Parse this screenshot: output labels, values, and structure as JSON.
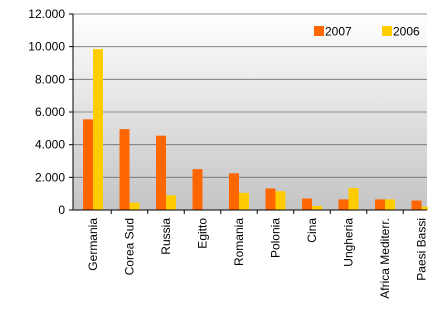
{
  "chart_data": {
    "type": "bar",
    "title": "",
    "xlabel": "",
    "ylabel": "",
    "ylim": [
      0,
      12000
    ],
    "yticks": [
      0,
      2000,
      4000,
      6000,
      8000,
      10000,
      12000
    ],
    "ytick_labels": [
      "0",
      "2.000",
      "4.000",
      "6.000",
      "8.000",
      "10.000",
      "12.000"
    ],
    "grid": true,
    "legend_position": "top-right",
    "categories": [
      "Germania",
      "Corea Sud",
      "Russia",
      "Egitto",
      "Romania",
      "Polonia",
      "Cina",
      "Ungheria",
      "Africa Mediterr.",
      "Paesi Bassi"
    ],
    "series": [
      {
        "name": "2007",
        "color": "#ff6600",
        "values": [
          5550,
          4950,
          4550,
          2500,
          2250,
          1320,
          700,
          650,
          650,
          580
        ]
      },
      {
        "name": "2006",
        "color": "#ffcc00",
        "values": [
          9850,
          450,
          900,
          0,
          1050,
          1150,
          250,
          1350,
          650,
          200
        ]
      }
    ]
  }
}
